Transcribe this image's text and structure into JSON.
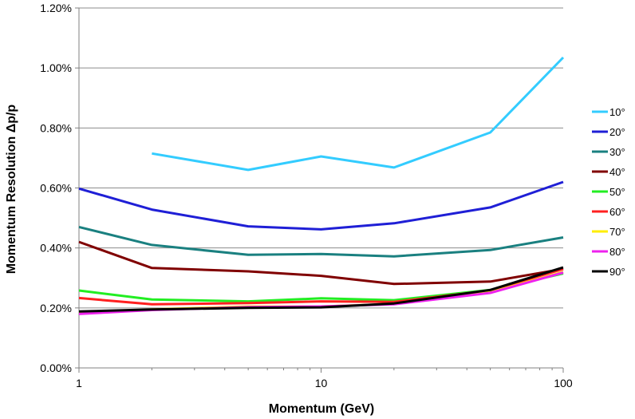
{
  "chart_data": {
    "type": "line",
    "xlabel": "Momentum (GeV)",
    "ylabel": "Momentum Resolution  Δp/p",
    "xscale": "log",
    "xlim": [
      1,
      100
    ],
    "ylim": [
      0.0,
      1.2
    ],
    "x_ticks": [
      "1",
      "10",
      "100"
    ],
    "y_ticks": [
      "0.00%",
      "0.20%",
      "0.40%",
      "0.60%",
      "0.80%",
      "1.00%",
      "1.20%"
    ],
    "y_unit": "%",
    "grid": "horizontal",
    "legend_position": "right",
    "x": [
      1,
      2,
      5,
      10,
      20,
      50,
      100
    ],
    "series": [
      {
        "name": "10°",
        "color": "#33ccff",
        "values": [
          null,
          0.715,
          0.66,
          0.705,
          0.668,
          0.785,
          1.035
        ]
      },
      {
        "name": "20°",
        "color": "#1f1fd6",
        "values": [
          0.598,
          0.528,
          0.472,
          0.462,
          0.482,
          0.535,
          0.62
        ]
      },
      {
        "name": "30°",
        "color": "#1a8080",
        "values": [
          0.47,
          0.41,
          0.377,
          0.38,
          0.372,
          0.393,
          0.435
        ]
      },
      {
        "name": "40°",
        "color": "#800000",
        "values": [
          0.42,
          0.333,
          0.322,
          0.307,
          0.28,
          0.288,
          0.33
        ]
      },
      {
        "name": "50°",
        "color": "#22ee22",
        "values": [
          0.258,
          0.228,
          0.222,
          0.232,
          0.226,
          0.26,
          0.315
        ]
      },
      {
        "name": "60°",
        "color": "#ff2020",
        "values": [
          0.233,
          0.212,
          0.216,
          0.222,
          0.22,
          0.258,
          0.33
        ]
      },
      {
        "name": "70°",
        "color": "#ffee00",
        "values": [
          0.183,
          0.195,
          0.205,
          0.205,
          0.213,
          0.252,
          0.32
        ]
      },
      {
        "name": "80°",
        "color": "#ee22ee",
        "values": [
          0.18,
          0.193,
          0.203,
          0.205,
          0.212,
          0.25,
          0.318
        ]
      },
      {
        "name": "90°",
        "color": "#000000",
        "values": [
          0.188,
          0.195,
          0.2,
          0.202,
          0.215,
          0.26,
          0.335
        ]
      }
    ]
  }
}
